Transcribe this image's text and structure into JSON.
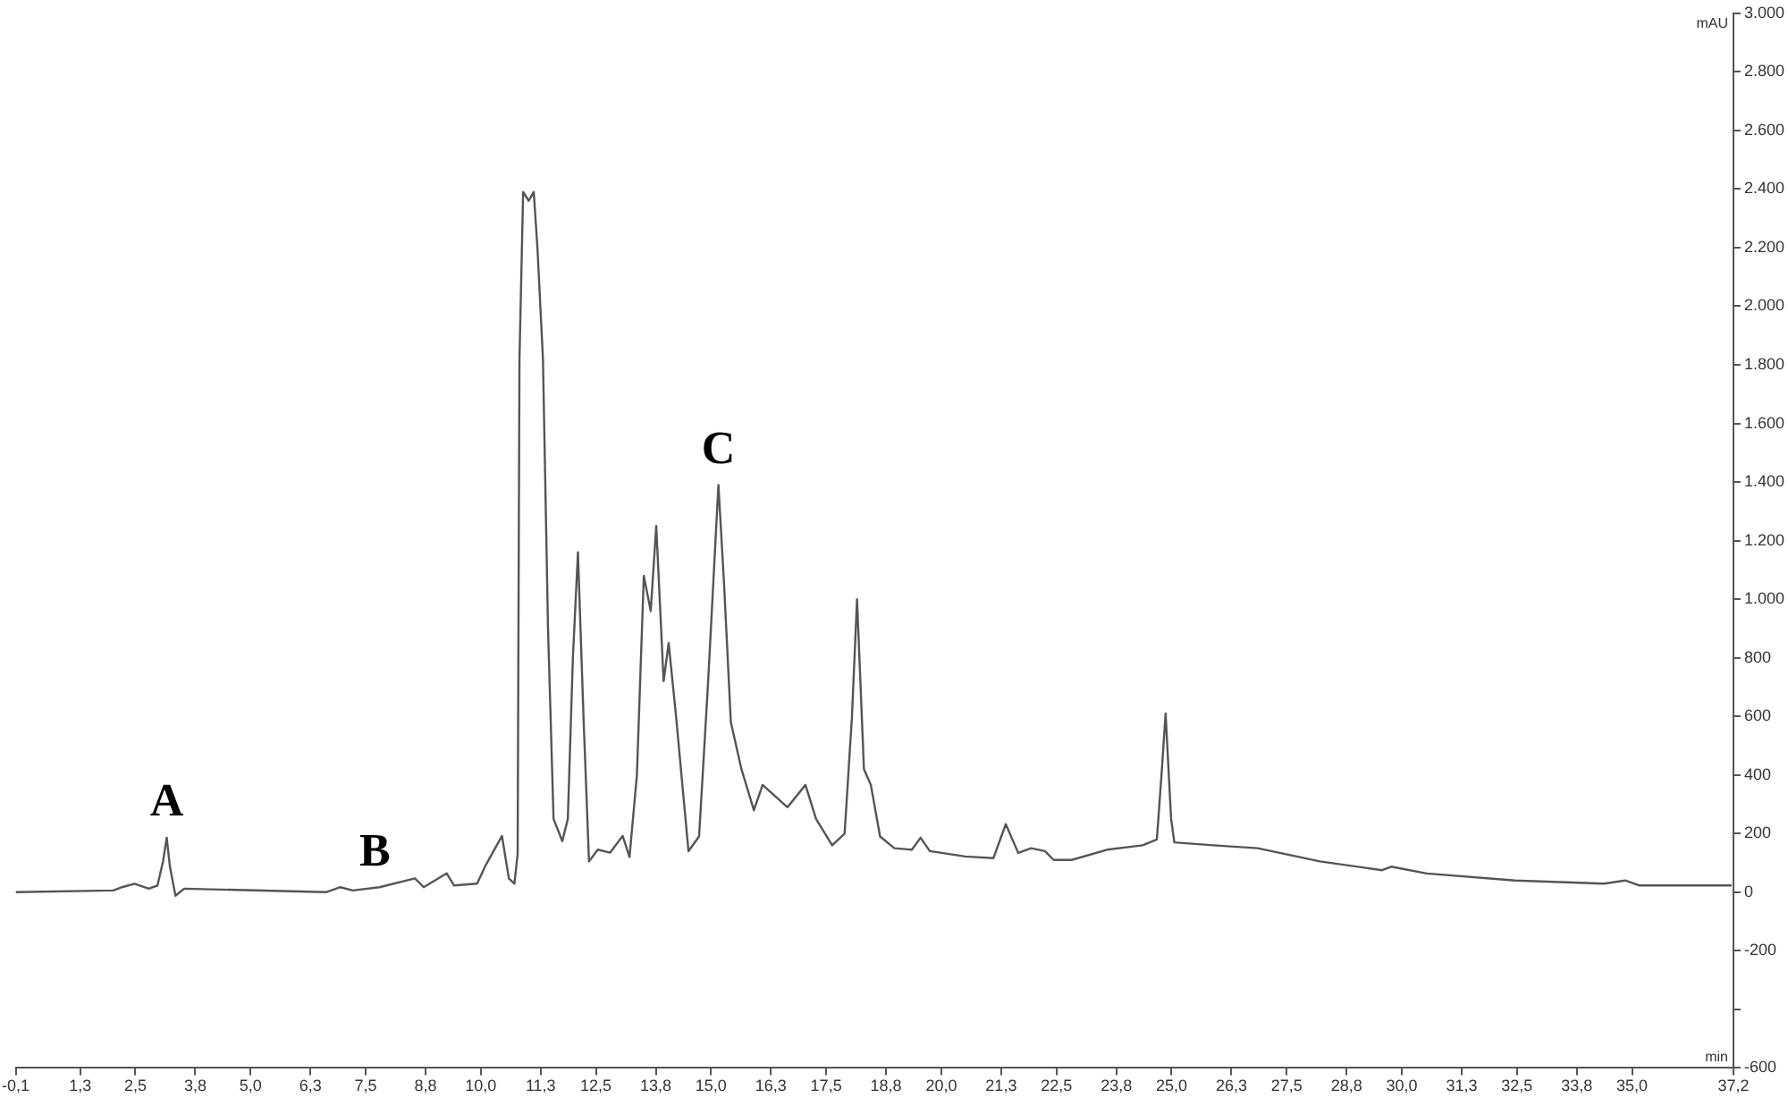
{
  "chart_data": {
    "type": "line",
    "xlabel": "min",
    "ylabel": "mAU",
    "xlim": [
      -0.1,
      37.2
    ],
    "ylim": [
      -600,
      3000
    ],
    "xticks": [
      {
        "value": -0.1,
        "label": "-0,1"
      },
      {
        "value": 1.3,
        "label": "1,3"
      },
      {
        "value": 2.5,
        "label": "2,5"
      },
      {
        "value": 3.8,
        "label": "3,8"
      },
      {
        "value": 5.0,
        "label": "5,0"
      },
      {
        "value": 6.3,
        "label": "6,3"
      },
      {
        "value": 7.5,
        "label": "7,5"
      },
      {
        "value": 8.8,
        "label": "8,8"
      },
      {
        "value": 10.0,
        "label": "10,0"
      },
      {
        "value": 11.3,
        "label": "11,3"
      },
      {
        "value": 12.5,
        "label": "12,5"
      },
      {
        "value": 13.8,
        "label": "13,8"
      },
      {
        "value": 15.0,
        "label": "15,0"
      },
      {
        "value": 16.3,
        "label": "16,3"
      },
      {
        "value": 17.5,
        "label": "17,5"
      },
      {
        "value": 18.8,
        "label": "18,8"
      },
      {
        "value": 20.0,
        "label": "20,0"
      },
      {
        "value": 21.3,
        "label": "21,3"
      },
      {
        "value": 22.5,
        "label": "22,5"
      },
      {
        "value": 23.8,
        "label": "23,8"
      },
      {
        "value": 25.0,
        "label": "25,0"
      },
      {
        "value": 26.3,
        "label": "26,3"
      },
      {
        "value": 27.5,
        "label": "27,5"
      },
      {
        "value": 28.8,
        "label": "28,8"
      },
      {
        "value": 30.0,
        "label": "30,0"
      },
      {
        "value": 31.3,
        "label": "31,3"
      },
      {
        "value": 32.5,
        "label": "32,5"
      },
      {
        "value": 33.8,
        "label": "33,8"
      },
      {
        "value": 35.0,
        "label": "35,0"
      },
      {
        "value": 37.2,
        "label": "37,2"
      }
    ],
    "yticks": [
      {
        "value": 3000,
        "label": "3.000"
      },
      {
        "value": 2800,
        "label": "2.800"
      },
      {
        "value": 2600,
        "label": "2.600"
      },
      {
        "value": 2400,
        "label": "2.400"
      },
      {
        "value": 2200,
        "label": "2.200"
      },
      {
        "value": 2000,
        "label": "2.000"
      },
      {
        "value": 1800,
        "label": "1.800"
      },
      {
        "value": 1600,
        "label": "1.600"
      },
      {
        "value": 1400,
        "label": "1.400"
      },
      {
        "value": 1200,
        "label": "1.200"
      },
      {
        "value": 1000,
        "label": "1.000"
      },
      800,
      600,
      400,
      200,
      0,
      -200,
      {
        "value": -400,
        "label": null
      },
      -600
    ],
    "grid": false,
    "legend": false,
    "marker": "none",
    "line_style": "solid",
    "annotations": [
      {
        "text": "A",
        "x": 3.18,
        "y": 186
      },
      {
        "text": "B",
        "x": 7.7,
        "y": 17
      },
      {
        "text": "C",
        "x": 15.16,
        "y": 1390
      }
    ],
    "series": [
      {
        "color": "#555555",
        "x": [
          -0.1,
          2.02,
          2.21,
          2.48,
          2.79,
          2.98,
          3.1,
          3.18,
          3.25,
          3.37,
          3.56,
          6.64,
          6.95,
          7.22,
          7.8,
          8.57,
          8.76,
          9.26,
          9.42,
          9.92,
          10.11,
          10.46,
          10.61,
          10.73,
          10.8,
          10.84,
          10.92,
          11.04,
          11.15,
          11.23,
          11.35,
          11.46,
          11.58,
          11.77,
          11.89,
          12.0,
          12.11,
          12.23,
          12.35,
          12.54,
          12.81,
          13.08,
          13.23,
          13.39,
          13.54,
          13.69,
          13.81,
          13.97,
          14.08,
          14.24,
          14.51,
          14.74,
          14.93,
          15.16,
          15.28,
          15.43,
          15.66,
          15.93,
          16.12,
          16.66,
          17.05,
          17.28,
          17.63,
          17.9,
          18.06,
          18.17,
          18.32,
          18.47,
          18.67,
          18.98,
          19.36,
          19.55,
          19.75,
          20.52,
          21.13,
          21.4,
          21.67,
          21.95,
          22.25,
          22.44,
          22.83,
          23.6,
          24.37,
          24.68,
          24.79,
          24.87,
          24.99,
          25.06,
          25.91,
          26.87,
          28.22,
          29.57,
          29.77,
          30.54,
          32.46,
          34.39,
          34.85,
          35.16,
          37.16
        ],
        "values": [
          0,
          6,
          17,
          29,
          12,
          23,
          105,
          186,
          87,
          -12,
          12,
          0,
          17,
          6,
          17,
          47,
          17,
          64,
          23,
          29,
          93,
          192,
          47,
          29,
          130,
          1820,
          2390,
          2360,
          2390,
          2200,
          1820,
          900,
          250,
          174,
          250,
          800,
          1160,
          600,
          105,
          145,
          135,
          192,
          120,
          400,
          1080,
          960,
          1250,
          720,
          850,
          600,
          140,
          190,
          700,
          1390,
          1060,
          580,
          420,
          280,
          366,
          290,
          366,
          250,
          160,
          200,
          600,
          1000,
          420,
          366,
          190,
          150,
          145,
          186,
          140,
          122,
          116,
          232,
          134,
          150,
          140,
          110,
          110,
          145,
          160,
          180,
          420,
          610,
          250,
          170,
          160,
          150,
          105,
          75,
          87,
          64,
          40,
          29,
          40,
          23,
          23
        ]
      }
    ]
  }
}
